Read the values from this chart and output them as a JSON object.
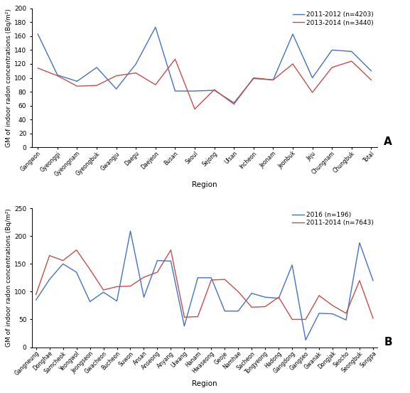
{
  "panel_A": {
    "legend_labels": [
      "2011-2012 (n=4203)",
      "2013-2014 (n=3440)"
    ],
    "line_colors": [
      "#4472C4",
      "#C0504D"
    ],
    "categories": [
      "Gangwon",
      "Gyeonggi",
      "Gyeongnam",
      "Gyeongbuk",
      "Gwangju",
      "Daegu",
      "Daejeon",
      "Busan",
      "Seoul",
      "Sejong",
      "Ulsan",
      "Incheon",
      "Jeonam",
      "Jeonbuk",
      "Jeju",
      "Chungnam",
      "Chungbuk",
      "Total"
    ],
    "series_blue": [
      163,
      104,
      95,
      115,
      84,
      120,
      173,
      81,
      81,
      82,
      64,
      99,
      97,
      163,
      100,
      140,
      138,
      110
    ],
    "series_red": [
      114,
      103,
      88,
      89,
      103,
      107,
      90,
      127,
      55,
      83,
      62,
      100,
      97,
      120,
      79,
      115,
      124,
      97
    ],
    "ylim": [
      0,
      200
    ],
    "yticks": [
      0,
      20,
      40,
      60,
      80,
      100,
      120,
      140,
      160,
      180,
      200
    ],
    "ylabel": "GM of indoor radon concentrations (Bq/m²)",
    "xlabel": "Region",
    "panel_label": "A"
  },
  "panel_B": {
    "legend_labels": [
      "2016 (n=196)",
      "2011-2014 (n=7643)"
    ],
    "line_colors": [
      "#4472C4",
      "#C0504D"
    ],
    "categories": [
      "Gangneung",
      "Donghae",
      "Samcheok",
      "Yeongwol",
      "Jeongseon",
      "Gwacheon",
      "Bucheon",
      "Suwon",
      "Ansan",
      "Anseong",
      "Anyang",
      "Uiwang",
      "Hanam",
      "Hwaseong",
      "Geoje",
      "Namhae",
      "Sacheon",
      "Tongyeong",
      "Hadong",
      "Gangdong",
      "Gangseo",
      "Gwanak",
      "Dongjak",
      "Seocho",
      "Seongbuk",
      "Songpa"
    ],
    "series_blue": [
      85,
      122,
      150,
      135,
      82,
      99,
      83,
      209,
      90,
      156,
      155,
      38,
      125,
      125,
      65,
      65,
      97,
      90,
      88,
      148,
      13,
      61,
      60,
      49,
      188,
      120
    ],
    "series_red": [
      95,
      165,
      156,
      175,
      140,
      103,
      109,
      110,
      126,
      135,
      175,
      54,
      55,
      121,
      122,
      100,
      72,
      73,
      90,
      50,
      50,
      93,
      75,
      61,
      120,
      52
    ],
    "ylim": [
      0,
      250
    ],
    "yticks": [
      0,
      50,
      100,
      150,
      200,
      250
    ],
    "ylabel": "GM of indoor radon concentrations (Bq/m²)",
    "xlabel": "Region",
    "panel_label": "B"
  }
}
